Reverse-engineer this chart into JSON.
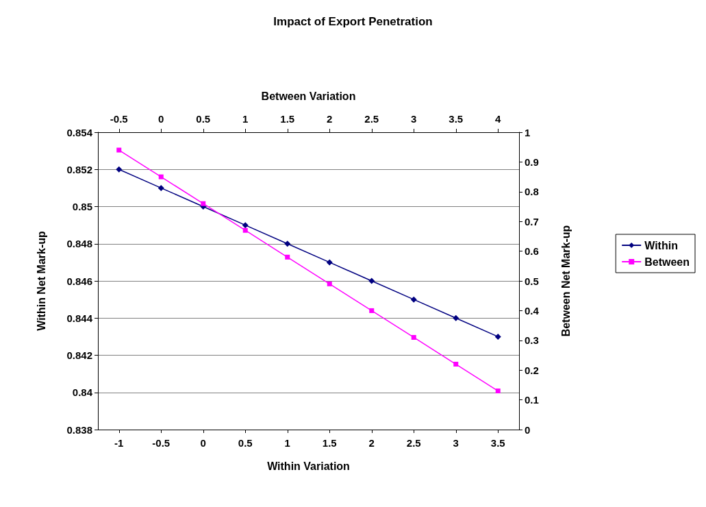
{
  "chart_data": {
    "type": "line",
    "title": "Impact of Export Penetration",
    "xlabel": "Within Variation",
    "x2label": "Between Variation",
    "ylabel": "Within Net Mark-up",
    "y2label": "Between Net Mark-up",
    "x": [
      -1,
      -0.5,
      0,
      0.5,
      1,
      1.5,
      2,
      2.5,
      3,
      3.5
    ],
    "xlim": [
      -1.25,
      3.75
    ],
    "xticks": [
      -1,
      -0.5,
      0,
      0.5,
      1,
      1.5,
      2,
      2.5,
      3,
      3.5
    ],
    "x2lim": [
      -0.75,
      4.25
    ],
    "x2ticks": [
      -0.5,
      0,
      0.5,
      1,
      1.5,
      2,
      2.5,
      3,
      3.5,
      4
    ],
    "ylim": [
      0.838,
      0.854
    ],
    "yticks": [
      0.838,
      0.84,
      0.842,
      0.844,
      0.846,
      0.848,
      0.85,
      0.852,
      0.854
    ],
    "y2lim": [
      0,
      1
    ],
    "y2ticks": [
      0,
      0.1,
      0.2,
      0.3,
      0.4,
      0.5,
      0.6,
      0.7,
      0.8,
      0.9,
      1
    ],
    "series": [
      {
        "name": "Within",
        "color": "#000080",
        "marker": "diamond",
        "values": [
          0.852,
          0.851,
          0.85,
          0.849,
          0.848,
          0.847,
          0.846,
          0.845,
          0.844,
          0.843
        ]
      },
      {
        "name": "Between",
        "color": "#ff00ff",
        "marker": "square",
        "axis": "y2",
        "values": [
          0.94,
          0.85,
          0.76,
          0.67,
          0.58,
          0.49,
          0.4,
          0.31,
          0.22,
          0.13
        ]
      }
    ],
    "grid": "y",
    "legend": "right",
    "line_style": "solid"
  }
}
